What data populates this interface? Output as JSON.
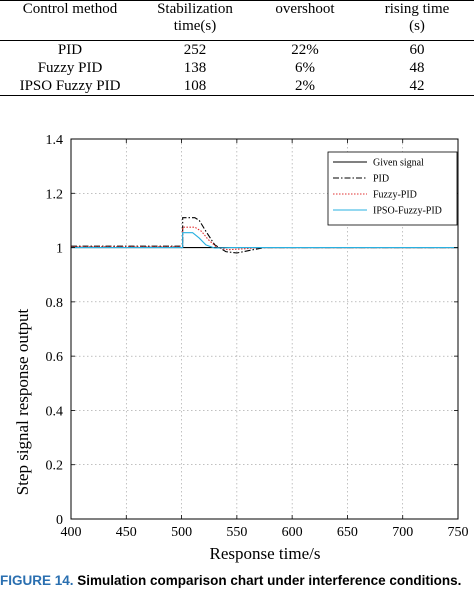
{
  "table": {
    "headers": [
      {
        "line1": "Control method",
        "line2": ""
      },
      {
        "line1": "Stabilization",
        "line2": "time(s)"
      },
      {
        "line1": "overshoot",
        "line2": ""
      },
      {
        "line1": "rising time",
        "line2": "(s)"
      }
    ],
    "rows": [
      {
        "method": "PID",
        "stabilization": "252",
        "overshoot": "22%",
        "rising": "60"
      },
      {
        "method": "Fuzzy PID",
        "stabilization": "138",
        "overshoot": "6%",
        "rising": "48"
      },
      {
        "method": "IPSO Fuzzy PID",
        "stabilization": "108",
        "overshoot": "2%",
        "rising": "42"
      }
    ]
  },
  "chart_data": {
    "type": "line",
    "title": "",
    "xlabel": "Response time/s",
    "ylabel": "Step signal response output",
    "xlim": [
      400,
      750
    ],
    "ylim": [
      0,
      1.4
    ],
    "xticks": [
      400,
      450,
      500,
      550,
      600,
      650,
      700,
      750
    ],
    "yticks": [
      0,
      0.2,
      0.4,
      0.6,
      0.8,
      1,
      1.2,
      1.4
    ],
    "xtick_labels": [
      "400",
      "450",
      "500",
      "550",
      "600",
      "650",
      "700",
      "750"
    ],
    "ytick_labels": [
      "0",
      "0.2",
      "0.4",
      "0.6",
      "0.8",
      "1",
      "1.2",
      "1.4"
    ],
    "grid": true,
    "legend_position": "top-right",
    "series": [
      {
        "name": "Given signal",
        "color": "#000000",
        "dash": "solid",
        "x": [
          400,
          750
        ],
        "y": [
          1,
          1
        ]
      },
      {
        "name": "PID",
        "color": "#000000",
        "dash": "dashdot",
        "x": [
          400,
          501,
          501,
          512,
          516,
          522,
          530,
          540,
          550,
          562,
          575,
          600,
          750
        ],
        "y": [
          1.005,
          1.005,
          1.11,
          1.11,
          1.1,
          1.06,
          1.01,
          0.985,
          0.98,
          0.99,
          1.0,
          1.0,
          1.0
        ]
      },
      {
        "name": "Fuzzy-PID",
        "color": "#e03030",
        "dash": "dotted",
        "x": [
          400,
          501,
          501,
          512,
          518,
          524,
          532,
          542,
          555,
          570,
          750
        ],
        "y": [
          1.003,
          1.003,
          1.075,
          1.075,
          1.06,
          1.03,
          1.0,
          0.992,
          0.995,
          1.0,
          1.0
        ]
      },
      {
        "name": "IPSO-Fuzzy-PID",
        "color": "#28b0e0",
        "dash": "solid",
        "x": [
          400,
          501,
          501,
          510,
          516,
          522,
          530,
          545,
          750
        ],
        "y": [
          1.0,
          1.0,
          1.055,
          1.055,
          1.035,
          1.01,
          0.998,
          1.0,
          1.0
        ]
      }
    ]
  },
  "caption": {
    "figure_label": "FIGURE 14.",
    "text": "Simulation comparison chart under interference conditions."
  },
  "colors": {
    "caption_label": "#2a6fb0"
  }
}
